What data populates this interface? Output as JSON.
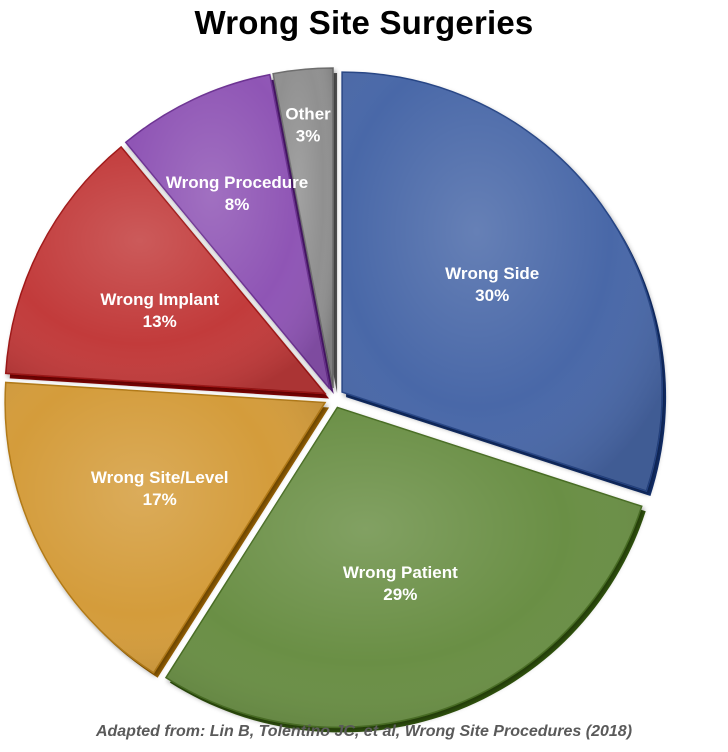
{
  "chart_data": {
    "type": "pie",
    "title": "Wrong Site Surgeries",
    "slices": [
      {
        "label": "Wrong Side",
        "value": 30,
        "value_label": "30%",
        "color": "#4a68a8"
      },
      {
        "label": "Wrong Patient",
        "value": 29,
        "value_label": "29%",
        "color": "#6a8f45"
      },
      {
        "label": "Wrong Site/Level",
        "value": 17,
        "value_label": "17%",
        "color": "#d49c3a"
      },
      {
        "label": "Wrong Implant",
        "value": 13,
        "value_label": "13%",
        "color": "#c23a3a"
      },
      {
        "label": "Wrong Procedure",
        "value": 8,
        "value_label": "8%",
        "color": "#8f55b5"
      },
      {
        "label": "Other",
        "value": 3,
        "value_label": "3%",
        "color": "#909090"
      }
    ],
    "start_angle_deg": 0,
    "direction": "clockwise",
    "legend": "none"
  },
  "footer": {
    "source": "Adapted from: Lin B, Tolentino JC, et al, Wrong Site Procedures (2018)"
  }
}
